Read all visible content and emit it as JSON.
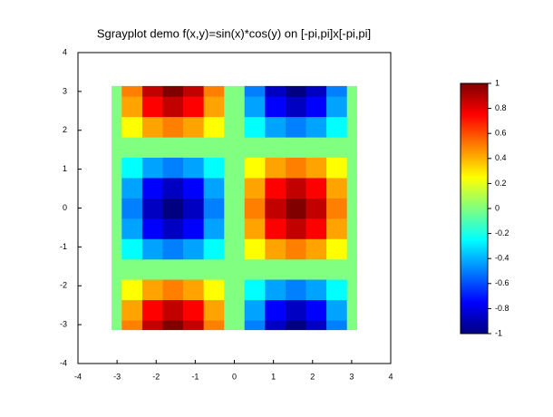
{
  "chart_data": {
    "type": "heatmap",
    "title": "Sgrayplot demo f(x,y)=sin(x)*cos(y) on [-pi,pi]x[-pi,pi]",
    "x": [
      -3.14,
      -2.62,
      -2.09,
      -1.57,
      -1.05,
      -0.52,
      0,
      0.52,
      1.05,
      1.57,
      2.09,
      2.62,
      3.14
    ],
    "y": [
      -3.14,
      -2.62,
      -2.09,
      -1.57,
      -1.05,
      -0.52,
      0,
      0.52,
      1.05,
      1.57,
      2.09,
      2.62,
      3.14
    ],
    "z": [
      [
        0,
        0.5,
        0.87,
        1,
        0.87,
        0.5,
        0,
        -0.5,
        -0.87,
        -1,
        -0.87,
        -0.5,
        0
      ],
      [
        0,
        0.43,
        0.75,
        0.87,
        0.75,
        0.43,
        0,
        -0.43,
        -0.75,
        -0.87,
        -0.75,
        -0.43,
        0
      ],
      [
        0,
        0.25,
        0.43,
        0.5,
        0.43,
        0.25,
        0,
        -0.25,
        -0.43,
        -0.5,
        -0.43,
        -0.25,
        0
      ],
      [
        0,
        0,
        0,
        0,
        0,
        0,
        0,
        0,
        0,
        0,
        0,
        0,
        0
      ],
      [
        0,
        -0.25,
        -0.43,
        -0.5,
        -0.43,
        -0.25,
        0,
        0.25,
        0.43,
        0.5,
        0.43,
        0.25,
        0
      ],
      [
        0,
        -0.43,
        -0.75,
        -0.87,
        -0.75,
        -0.43,
        0,
        0.43,
        0.75,
        0.87,
        0.75,
        0.43,
        0
      ],
      [
        0,
        -0.5,
        -0.87,
        -1,
        -0.87,
        -0.5,
        0,
        0.5,
        0.87,
        1,
        0.87,
        0.5,
        0
      ],
      [
        0,
        -0.43,
        -0.75,
        -0.87,
        -0.75,
        -0.43,
        0,
        0.43,
        0.75,
        0.87,
        0.75,
        0.43,
        0
      ],
      [
        0,
        -0.25,
        -0.43,
        -0.5,
        -0.43,
        -0.25,
        0,
        0.25,
        0.43,
        0.5,
        0.43,
        0.25,
        0
      ],
      [
        0,
        0,
        0,
        0,
        0,
        0,
        0,
        0,
        0,
        0,
        0,
        0,
        0
      ],
      [
        0,
        0.25,
        0.43,
        0.5,
        0.43,
        0.25,
        0,
        -0.25,
        -0.43,
        -0.5,
        -0.43,
        -0.25,
        0
      ],
      [
        0,
        0.43,
        0.75,
        0.87,
        0.75,
        0.43,
        0,
        -0.43,
        -0.75,
        -0.87,
        -0.75,
        -0.43,
        0
      ],
      [
        0,
        0.5,
        0.87,
        1,
        0.87,
        0.5,
        0,
        -0.5,
        -0.87,
        -1,
        -0.87,
        -0.5,
        0
      ]
    ],
    "xlim": [
      -4,
      4
    ],
    "xticks": [
      -4,
      -3,
      -2,
      -1,
      0,
      1,
      2,
      3,
      4
    ],
    "ylim": [
      -4,
      4
    ],
    "yticks": [
      -4,
      -3,
      -2,
      -1,
      0,
      1,
      2,
      3,
      4
    ],
    "colormap": "jet",
    "colorbar": {
      "lim": [
        -1,
        1
      ],
      "ticks": [
        -1,
        -0.8,
        -0.6,
        -0.4,
        -0.2,
        0,
        0.2,
        0.4,
        0.6,
        0.8,
        1
      ]
    }
  }
}
